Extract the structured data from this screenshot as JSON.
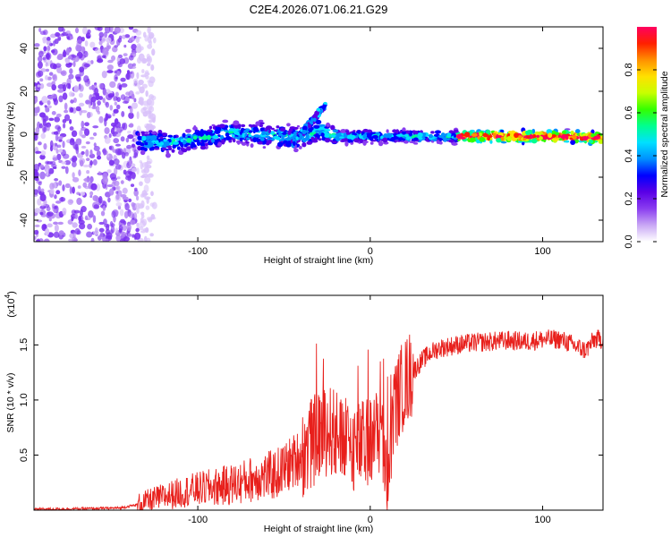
{
  "chart_data": [
    {
      "type": "heatmap",
      "title": "C2E4.2026.071.06.21.G29",
      "xlabel": "Height of straight line (km)",
      "ylabel": "Frequency (Hz)",
      "xlim": [
        -195,
        135
      ],
      "ylim": [
        -50,
        50
      ],
      "xticks": [
        -100,
        0,
        100
      ],
      "yticks": [
        -40,
        -20,
        0,
        20,
        40
      ],
      "colorbar": {
        "label": "Normalized spectral amplitude",
        "range": [
          0,
          1
        ],
        "ticks": [
          0.0,
          0.2,
          0.4,
          0.6,
          0.8
        ],
        "colors": [
          "#ffffff",
          "#c9a7f5",
          "#8a3df0",
          "#5a00e6",
          "#0000ff",
          "#0090ff",
          "#00e0ff",
          "#00ff90",
          "#33ff00",
          "#c8ff00",
          "#ffe000",
          "#ff9000",
          "#ff2000",
          "#ff0060"
        ]
      },
      "noise_region_x": [
        -195,
        -135
      ],
      "ridge": {
        "x": [
          -135,
          -120,
          -100,
          -80,
          -60,
          -40,
          -30,
          -20,
          -10,
          0,
          20,
          40,
          60,
          80,
          100,
          120,
          135
        ],
        "y": [
          -3,
          -4,
          -2,
          1,
          0,
          -2,
          2,
          -1,
          -1,
          -1,
          -1,
          -1,
          -1,
          -1,
          -1,
          -1,
          -2
        ]
      },
      "branch": {
        "x": [
          -45,
          -40,
          -35,
          -30,
          -26
        ],
        "y": [
          -4,
          0,
          5,
          10,
          13
        ]
      }
    },
    {
      "type": "line",
      "xlabel": "Height of straight line (km)",
      "ylabel": "SNR (10 * v/v)",
      "yscale_label": "(x10^4)",
      "yscale_base": "(x10",
      "yscale_exp": "4",
      "xlim": [
        -195,
        135
      ],
      "ylim": [
        0,
        1.95
      ],
      "xticks": [
        -100,
        0,
        100
      ],
      "yticks": [
        0.5,
        1.0,
        1.5
      ],
      "ytick_labels": [
        "0.5",
        "1.0",
        "1.5"
      ],
      "series": [
        {
          "name": "SNR",
          "color": "#e8201c",
          "x": [
            -195,
            -180,
            -160,
            -145,
            -135,
            -125,
            -115,
            -105,
            -95,
            -85,
            -75,
            -65,
            -55,
            -48,
            -40,
            -33,
            -28,
            -25,
            -22,
            -18,
            -14,
            -10,
            -6,
            -2,
            2,
            6,
            8,
            10,
            12,
            14,
            18,
            22,
            26,
            30,
            35,
            40,
            50,
            60,
            70,
            80,
            90,
            100,
            110,
            115,
            120,
            125,
            130,
            135
          ],
          "y": [
            0.01,
            0.01,
            0.015,
            0.02,
            0.05,
            0.1,
            0.14,
            0.18,
            0.2,
            0.22,
            0.25,
            0.3,
            0.32,
            0.4,
            0.5,
            0.62,
            0.7,
            0.72,
            0.72,
            0.62,
            0.6,
            0.58,
            0.58,
            0.6,
            0.65,
            0.75,
            0.5,
            0.32,
            0.6,
            0.92,
            1.1,
            1.2,
            1.28,
            1.36,
            1.43,
            1.47,
            1.5,
            1.52,
            1.53,
            1.54,
            1.53,
            1.55,
            1.55,
            1.52,
            1.48,
            1.45,
            1.55,
            1.55
          ]
        }
      ]
    }
  ]
}
